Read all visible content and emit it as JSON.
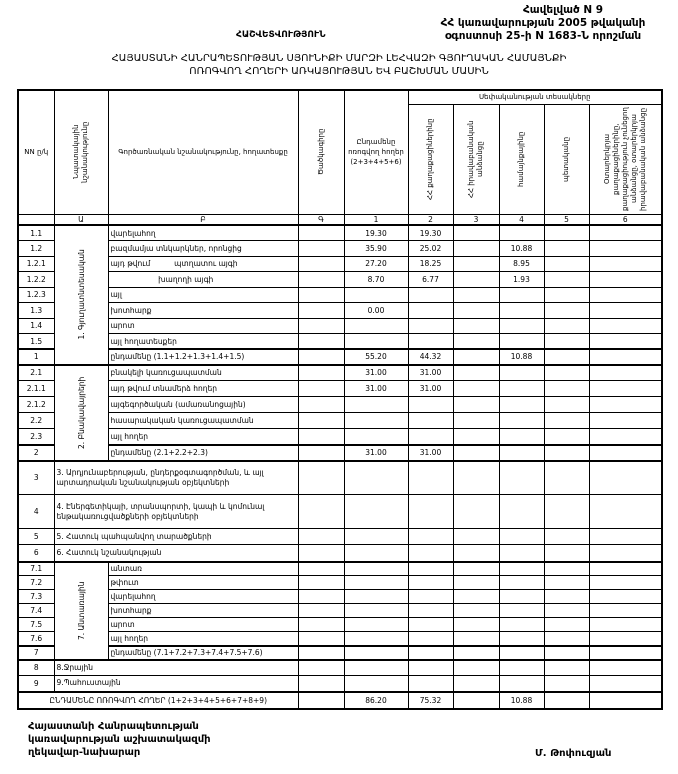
{
  "header": {
    "annex": "Հավելված N 9",
    "decree_line1": "ՀՀ կառավարության 2005 թվականի",
    "decree_line2": "օգոստոսի 25-ի N 1683-Ն որոշման",
    "report_label": "ՀԱՇՎԵՏՎՈՒԹՅՈՒՆ",
    "title_line1": "ՀԱՅԱՍՏԱՆԻ ՀԱՆՐԱՊԵՏՈՒԹՅԱՆ ՍՅՈՒՆԻՔԻ ՄԱՐԶԻ ԼԵՀՎԱԶԻ ԳՅՈՒՂԱԿԱՆ ՀԱՄԱՅՆՔԻ",
    "title_line2": "ՈՌՈԳՎՈՂ ՀՈՂԵՐԻ ԱՌԿԱՅՈՒԹՅԱՆ ԵՎ ԲԱՇԽՄԱՆ ՄԱՍԻՆ"
  },
  "columns": {
    "nn": "NN ը/կ",
    "purpose": "Նպատակային նշանակությունը",
    "function": "Գործառնական նշանակությունը, հողատեսքը",
    "code": "Ծածկագիրը",
    "total": "Ընդամենը ոռոգվող հողեր (2+3+4+5+6)",
    "ownership_group": "Սեփականության տեսակները",
    "own": [
      "ՀՀ քաղաքացիներինը",
      "ՀՀ իրավաբանական անձանցը",
      "համայնքայինը",
      "պետականը",
      "Օտարերկրյա քաղաքացիներինը, քաղաքացիություն չունեցող անձանցը, օտարերկրյա իրավաբանական անձանցը"
    ],
    "index_row": [
      "",
      "Ա",
      "Բ",
      "Գ",
      "1",
      "2",
      "3",
      "4",
      "5",
      "6"
    ]
  },
  "groups": [
    {
      "label": "1. Գյուղատնտեսական",
      "rows": [
        {
          "nn": "1.1",
          "desc": "վարելահող",
          "v": [
            "",
            "19.30",
            "19.30",
            "",
            "",
            "",
            ""
          ]
        },
        {
          "nn": "1.2",
          "desc": "բազմամյա տնկարկներ, որոնցից",
          "v": [
            "",
            "35.90",
            "25.02",
            "",
            "10.88",
            "",
            ""
          ]
        },
        {
          "nn": "1.2.1",
          "desc": "այդ թվում          պտղատու այգի",
          "v": [
            "",
            "27.20",
            "18.25",
            "",
            "8.95",
            "",
            ""
          ]
        },
        {
          "nn": "1.2.2",
          "desc": "                    խաղողի այգի",
          "v": [
            "",
            "8.70",
            "6.77",
            "",
            "1.93",
            "",
            ""
          ]
        },
        {
          "nn": "1.2.3",
          "desc": "այլ",
          "v": [
            "",
            "",
            "",
            "",
            "",
            "",
            ""
          ]
        },
        {
          "nn": "1.3",
          "desc": "խոտհարք",
          "v": [
            "",
            "0.00",
            "",
            "",
            "",
            "",
            ""
          ]
        },
        {
          "nn": "1.4",
          "desc": "արոտ",
          "v": [
            "",
            "",
            "",
            "",
            "",
            "",
            ""
          ]
        },
        {
          "nn": "1.5",
          "desc": "այլ հողատեսքեր",
          "v": [
            "",
            "",
            "",
            "",
            "",
            "",
            ""
          ]
        },
        {
          "nn": "1",
          "desc": "ընդամենը (1.1+1.2+1.3+1.4+1.5)",
          "v": [
            "",
            "55.20",
            "44.32",
            "",
            "10.88",
            "",
            ""
          ]
        }
      ]
    },
    {
      "label": "2. Բնակավայրերի",
      "rows": [
        {
          "nn": "2.1",
          "desc": "բնակելի կառուցապատման",
          "v": [
            "",
            "31.00",
            "31.00",
            "",
            "",
            "",
            ""
          ]
        },
        {
          "nn": "2.1.1",
          "desc": "այդ թվում տնամերձ հողեր",
          "v": [
            "",
            "31.00",
            "31.00",
            "",
            "",
            "",
            ""
          ]
        },
        {
          "nn": "2.1.2",
          "desc": "այգեգործական (ամառանոցային)",
          "v": [
            "",
            "",
            "",
            "",
            "",
            "",
            ""
          ]
        },
        {
          "nn": "2.2",
          "desc": "հասարակական կառուցապատման",
          "v": [
            "",
            "",
            "",
            "",
            "",
            "",
            ""
          ]
        },
        {
          "nn": "2.3",
          "desc": "այլ հողեր",
          "v": [
            "",
            "",
            "",
            "",
            "",
            "",
            ""
          ]
        },
        {
          "nn": "2",
          "desc": "ընդամենը (2.1+2.2+2.3)",
          "v": [
            "",
            "31.00",
            "31.00",
            "",
            "",
            "",
            ""
          ]
        }
      ]
    },
    {
      "single": true,
      "rows": [
        {
          "nn": "3",
          "desc": "3. Արդյունաբերության, ընդերքօգտագործման, և այլ արտադրական նշանակության օբյեկտների",
          "v": [
            "",
            "",
            "",
            "",
            "",
            "",
            ""
          ]
        },
        {
          "nn": "4",
          "desc": "4. Էներգետիկայի, տրանսպորտի, կապի և կոմունալ ենթակառուցվածքների օբյեկտների",
          "v": [
            "",
            "",
            "",
            "",
            "",
            "",
            ""
          ]
        },
        {
          "nn": "5",
          "desc": "5. Հատուկ պահպանվող տարածքների",
          "v": [
            "",
            "",
            "",
            "",
            "",
            "",
            ""
          ]
        },
        {
          "nn": "6",
          "desc": "6. Հատուկ նշանակության",
          "v": [
            "",
            "",
            "",
            "",
            "",
            "",
            ""
          ]
        }
      ]
    },
    {
      "label": "7. Անտառային",
      "rows": [
        {
          "nn": "7.1",
          "desc": "անտառ",
          "v": [
            "",
            "",
            "",
            "",
            "",
            "",
            ""
          ]
        },
        {
          "nn": "7.2",
          "desc": "թփուտ",
          "v": [
            "",
            "",
            "",
            "",
            "",
            "",
            ""
          ]
        },
        {
          "nn": "7.3",
          "desc": "վարելահող",
          "v": [
            "",
            "",
            "",
            "",
            "",
            "",
            ""
          ]
        },
        {
          "nn": "7.4",
          "desc": "խոտհարք",
          "v": [
            "",
            "",
            "",
            "",
            "",
            "",
            ""
          ]
        },
        {
          "nn": "7.5",
          "desc": "արոտ",
          "v": [
            "",
            "",
            "",
            "",
            "",
            "",
            ""
          ]
        },
        {
          "nn": "7.6",
          "desc": "այլ հողեր",
          "v": [
            "",
            "",
            "",
            "",
            "",
            "",
            ""
          ]
        },
        {
          "nn": "7",
          "desc": "ընդամենը (7.1+7.2+7.3+7.4+7.5+7.6)",
          "v": [
            "",
            "",
            "",
            "",
            "",
            "",
            ""
          ]
        }
      ]
    },
    {
      "single": true,
      "rows": [
        {
          "nn": "8",
          "desc": "8.Ջրային",
          "v": [
            "",
            "",
            "",
            "",
            "",
            "",
            ""
          ]
        },
        {
          "nn": "9",
          "desc": "9.Պահուստային",
          "v": [
            "",
            "",
            "",
            "",
            "",
            "",
            ""
          ]
        }
      ]
    }
  ],
  "total": {
    "label": "ԸՆԴԱՄԵՆԸ ՈՌՈԳՎՈՂ ՀՈՂԵՐ (1+2+3+4+5+6+7+8+9)",
    "v": [
      "",
      "86.20",
      "75.32",
      "",
      "10.88",
      "",
      ""
    ]
  },
  "footer": {
    "signatory_line1": "Հայաստանի Հանրապետության",
    "signatory_line2": "կառավարության աշխատակազմի",
    "signatory_line3": "ղեկավար-նախարար",
    "name": "Մ. Թոփուզյան"
  }
}
